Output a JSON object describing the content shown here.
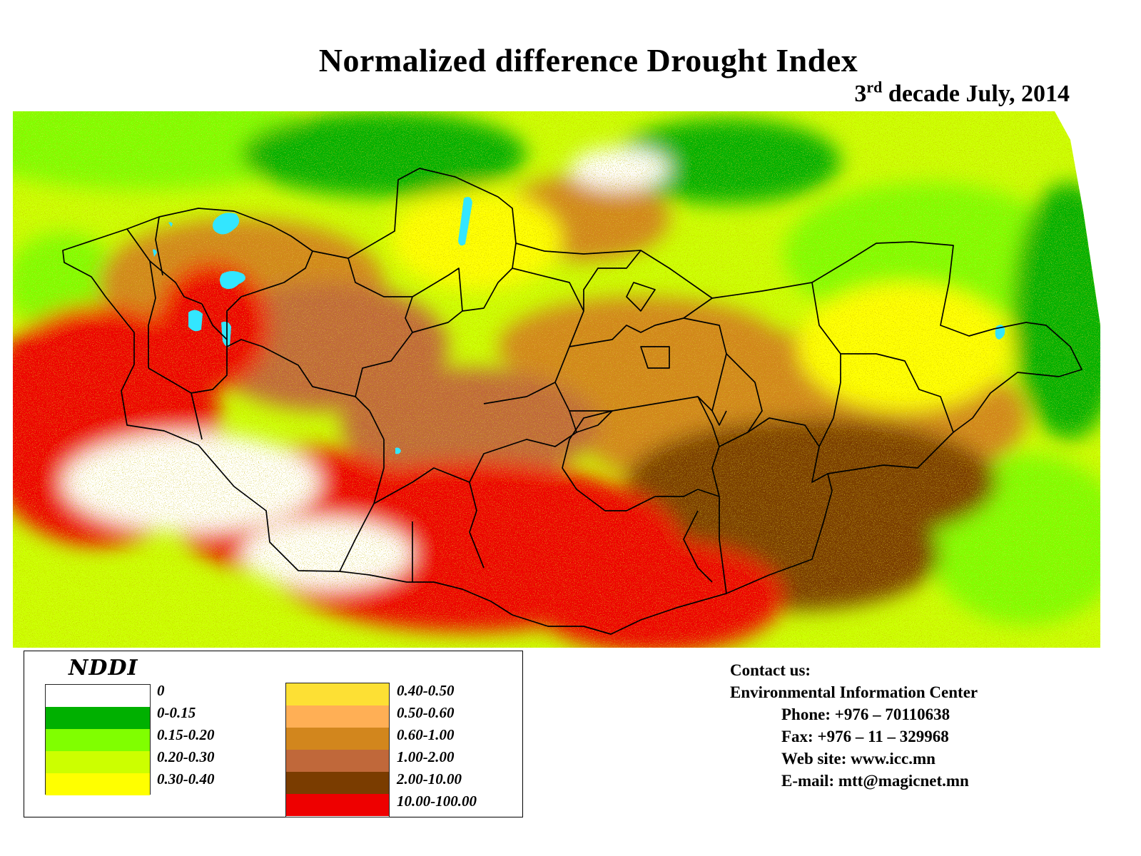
{
  "title": "Normalized  difference  Drought  Index",
  "subtitle": {
    "ordinal": "3",
    "suffix": "rd",
    "rest": " decade July,  2014"
  },
  "colors": {
    "no_data": "#ffffff",
    "water": "#33e6ff",
    "boundary": "#000000"
  },
  "legend": {
    "title": "NDDI",
    "left_column": [
      {
        "label": "0",
        "color": "#ffffff"
      },
      {
        "label": "0-0.15",
        "color": "#00b000"
      },
      {
        "label": "0.15-0.20",
        "color": "#80ff00"
      },
      {
        "label": "0.20-0.30",
        "color": "#ccff00"
      },
      {
        "label": "0.30-0.40",
        "color": "#ffff00"
      }
    ],
    "right_column": [
      {
        "label": "0.40-0.50",
        "color": "#fde034"
      },
      {
        "label": "0.50-0.60",
        "color": "#ffaf55"
      },
      {
        "label": "0.60-1.00",
        "color": "#d2861d"
      },
      {
        "label": "1.00-2.00",
        "color": "#c0683a"
      },
      {
        "label": "2.00-10.00",
        "color": "#7a3c00"
      },
      {
        "label": "10.00-100.00",
        "color": "#ee0000"
      }
    ]
  },
  "contact": {
    "heading": "Contact us:",
    "org": "Environmental Information Center",
    "phone": "Phone: +976 – 70110638",
    "fax": "Fax: +976 – 11 – 329968",
    "web": "Web site: www.icc.mn",
    "email": "E-mail: mtt@magicnet.mn"
  }
}
